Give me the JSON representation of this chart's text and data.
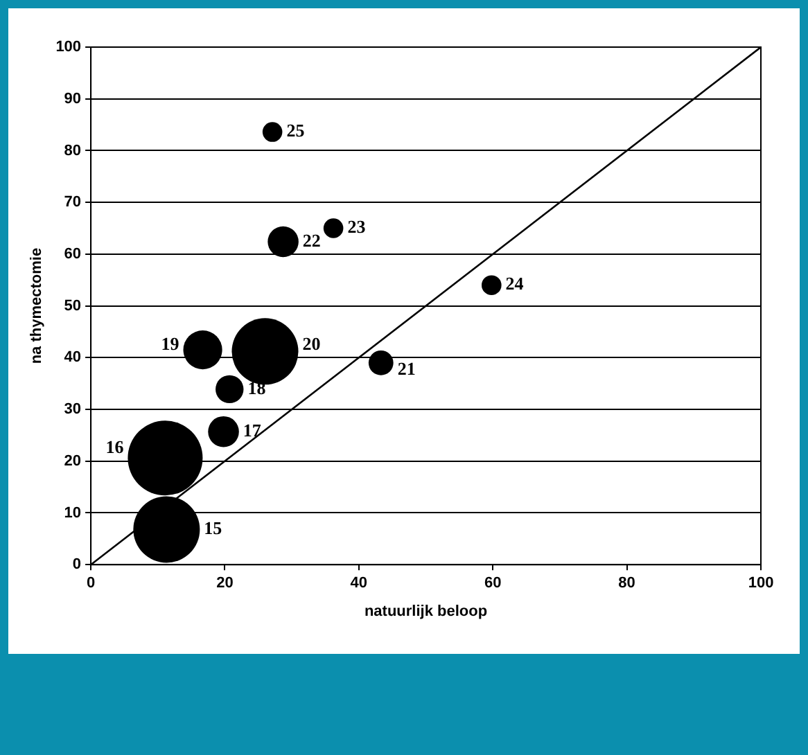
{
  "chart_data": {
    "type": "bubble",
    "xlabel": "natuurlijk beloop",
    "ylabel": "na thymectomie",
    "xlim": [
      0,
      100
    ],
    "xticks": [
      0,
      20,
      40,
      60,
      80,
      100
    ],
    "ylim": [
      0,
      100
    ],
    "yticks": [
      0,
      10,
      20,
      30,
      40,
      50,
      60,
      70,
      80,
      90,
      100
    ],
    "grid": "y",
    "legend": false,
    "series": [
      {
        "color": "#000000",
        "x": [
          11.3,
          11.1,
          19.8,
          20.7,
          16.7,
          26,
          43.3,
          28.7,
          36.2,
          59.8,
          27.1
        ],
        "values": [
          6.8,
          20.6,
          25.7,
          33.9,
          41.5,
          41.2,
          39,
          62.4,
          65,
          54,
          83.6
        ],
        "sizes": [
          0.79,
          1,
          0.17,
          0.14,
          0.27,
          0.79,
          0.11,
          0.17,
          0.07,
          0.07,
          0.07
        ]
      },
      {
        "type": "line",
        "color": "#000000",
        "x": [
          0,
          100
        ],
        "values": [
          0,
          100
        ]
      }
    ],
    "annotations": [
      {
        "text": "15",
        "x": 11.3,
        "y": 6.8
      },
      {
        "text": "16",
        "x": 11.1,
        "y": 20.6
      },
      {
        "text": "17",
        "x": 19.8,
        "y": 25.7
      },
      {
        "text": "18",
        "x": 20.7,
        "y": 33.9
      },
      {
        "text": "19",
        "x": 16.7,
        "y": 41.5
      },
      {
        "text": "20",
        "x": 26,
        "y": 41.2
      },
      {
        "text": "21",
        "x": 43.3,
        "y": 39
      },
      {
        "text": "22",
        "x": 28.7,
        "y": 62.4
      },
      {
        "text": "23",
        "x": 36.2,
        "y": 65
      },
      {
        "text": "24",
        "x": 59.8,
        "y": 54
      },
      {
        "text": "25",
        "x": 27.1,
        "y": 83.6
      }
    ]
  }
}
